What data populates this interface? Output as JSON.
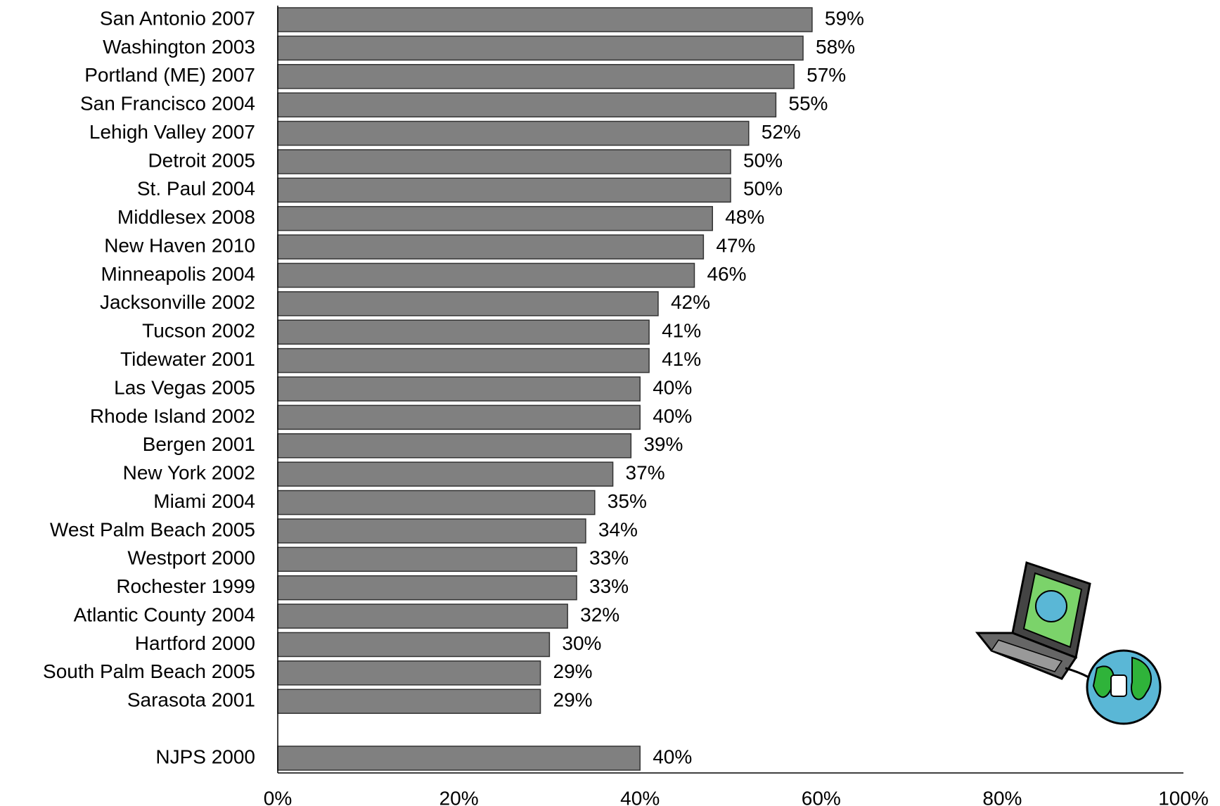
{
  "chart_data": {
    "type": "hbar",
    "categories": [
      "San Antonio 2007",
      "Washington 2003",
      "Portland (ME) 2007",
      "San Francisco 2004",
      "Lehigh Valley 2007",
      "Detroit 2005",
      "St. Paul 2004",
      "Middlesex 2008",
      "New Haven 2010",
      "Minneapolis 2004",
      "Jacksonville 2002",
      "Tucson 2002",
      "Tidewater 2001",
      "Las Vegas 2005",
      "Rhode Island 2002",
      "Bergen 2001",
      "New York 2002",
      "Miami 2004",
      "West Palm Beach 2005",
      "Westport 2000",
      "Rochester 1999",
      "Atlantic County 2004",
      "Hartford 2000",
      "South Palm Beach 2005",
      "Sarasota 2001",
      null,
      "NJPS 2000"
    ],
    "values": [
      59,
      58,
      57,
      55,
      52,
      50,
      50,
      48,
      47,
      46,
      42,
      41,
      41,
      40,
      40,
      39,
      37,
      35,
      34,
      33,
      33,
      32,
      30,
      29,
      29,
      null,
      40
    ],
    "value_labels": [
      "59%",
      "58%",
      "57%",
      "55%",
      "52%",
      "50%",
      "50%",
      "48%",
      "47%",
      "46%",
      "42%",
      "41%",
      "41%",
      "40%",
      "40%",
      "39%",
      "37%",
      "35%",
      "34%",
      "33%",
      "33%",
      "32%",
      "30%",
      "29%",
      "29%",
      null,
      "40%"
    ],
    "color": "#808080",
    "xlim": [
      0,
      100
    ],
    "xticks": [
      {
        "value": 0,
        "label": "0%"
      },
      {
        "value": 20,
        "label": "20%"
      },
      {
        "value": 40,
        "label": "40%"
      },
      {
        "value": 60,
        "label": "60%"
      },
      {
        "value": 80,
        "label": "80%"
      },
      {
        "value": 100,
        "label": "100%"
      }
    ],
    "grid": false
  }
}
